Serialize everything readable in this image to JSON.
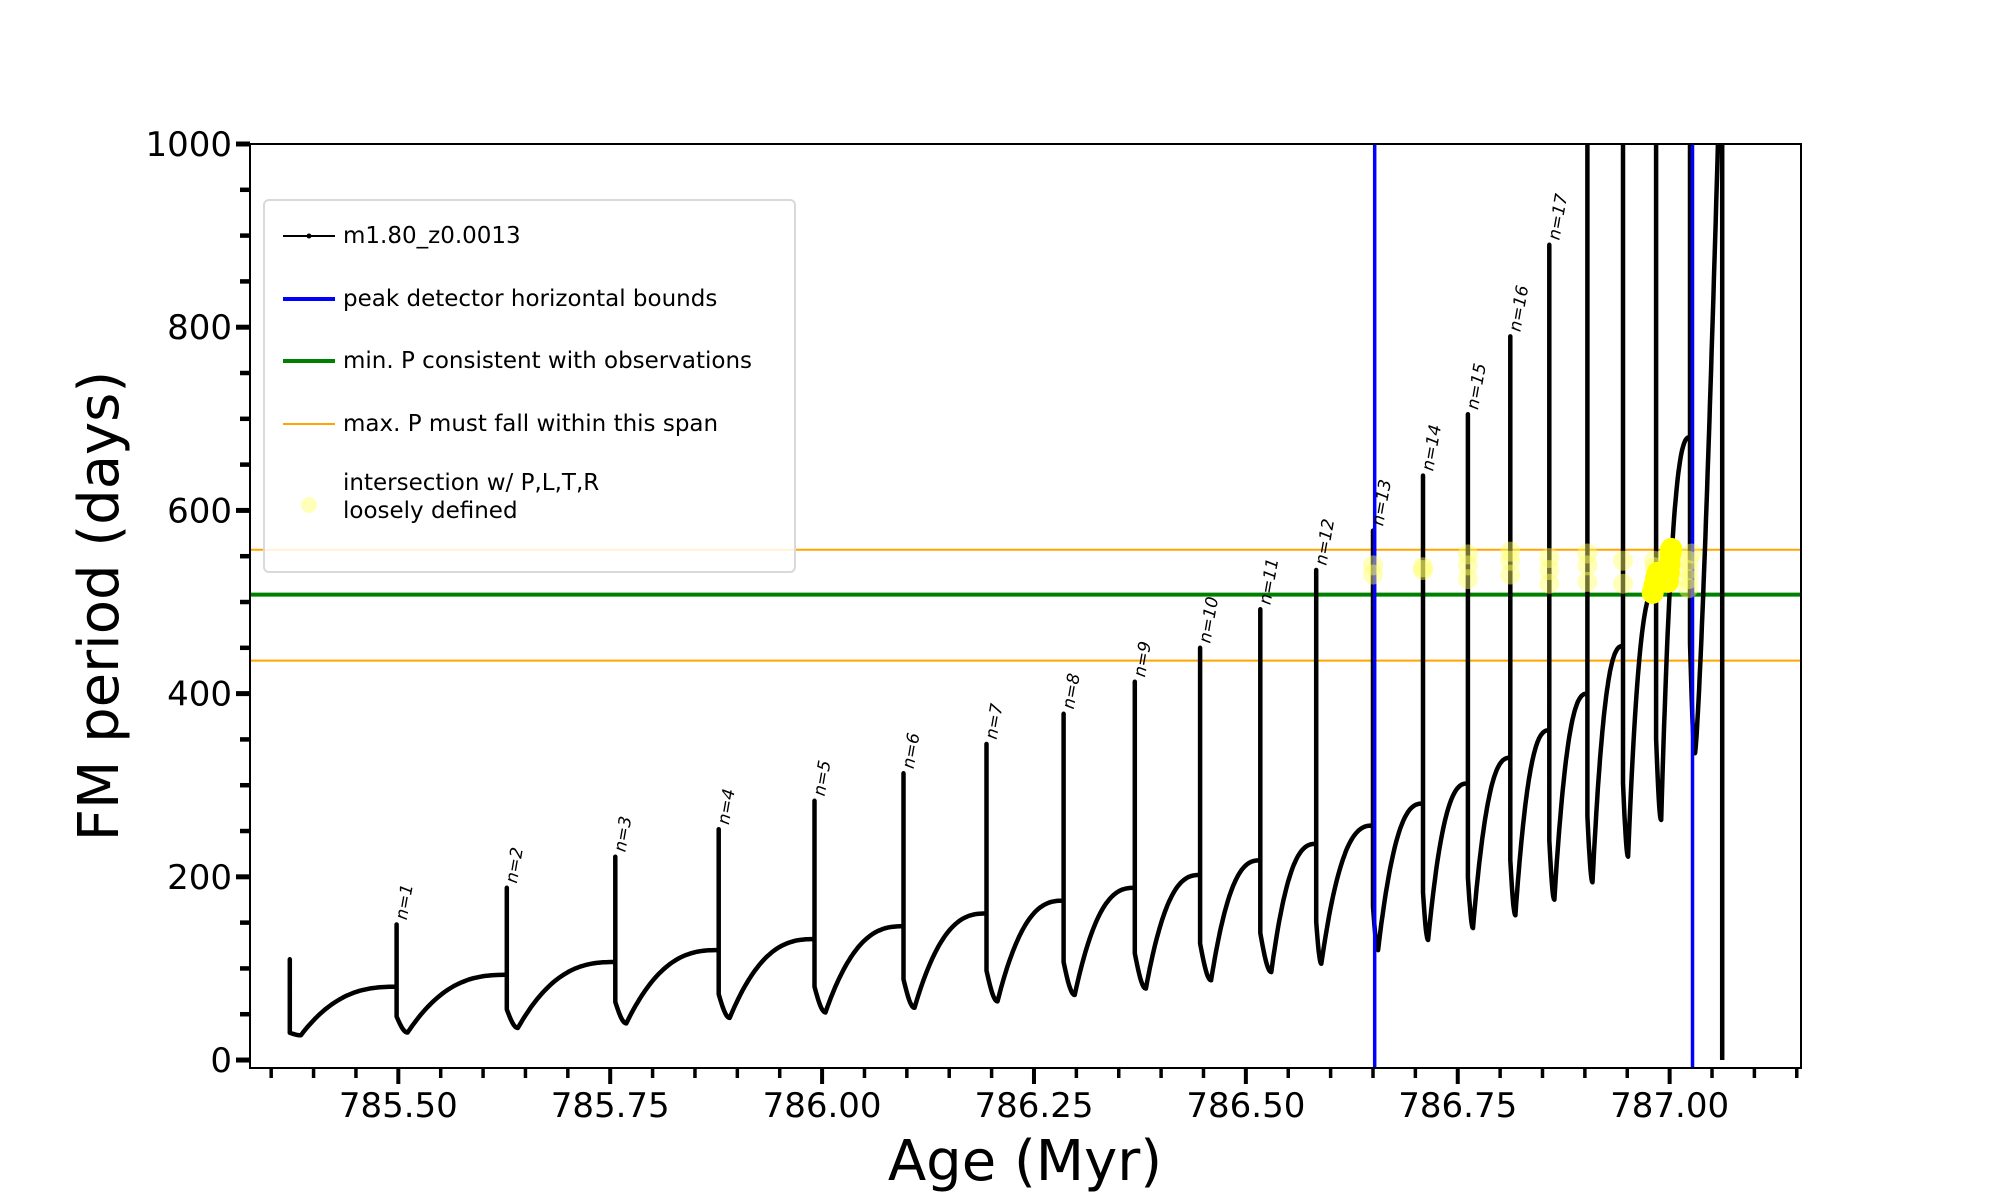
{
  "chart_data": {
    "type": "line",
    "xlabel": "Age (Myr)",
    "ylabel": "FM period (days)",
    "xlim": [
      785.325,
      787.155
    ],
    "ylim": [
      -8.7,
      1000
    ],
    "x_ticks": [
      785.5,
      785.75,
      786.0,
      786.25,
      786.5,
      786.75,
      787.0
    ],
    "x_tick_labels": [
      "785.50",
      "785.75",
      "786.00",
      "786.25",
      "786.50",
      "786.75",
      "787.00"
    ],
    "x_minor_step": 0.05,
    "y_ticks": [
      0,
      200,
      400,
      600,
      800,
      1000
    ],
    "y_tick_labels": [
      "0",
      "200",
      "400",
      "600",
      "800",
      "1000"
    ],
    "y_minor_step": 50,
    "grid": false,
    "legend_placement": "upper-left",
    "legend": [
      {
        "label": "m1.80_z0.0013",
        "color": "#000000",
        "kind": "line-marker"
      },
      {
        "label": "peak detector horizontal bounds",
        "color": "#0000ff",
        "kind": "line"
      },
      {
        "label": "min. P consistent with observations",
        "color": "#008000",
        "kind": "line"
      },
      {
        "label": "max. P must fall within this span",
        "color": "#ffa500",
        "kind": "thin-line"
      },
      {
        "label": "intersection w/ P,L,T,R",
        "label2": "loosely defined",
        "color": "#ffff66",
        "kind": "point"
      }
    ],
    "model_series": {
      "name": "m1.80_z0.0013",
      "color": "#000000",
      "pulses": [
        {
          "label": "",
          "age": 785.372,
          "pre": 35,
          "peak": 110,
          "dip": 27
        },
        {
          "label": "n=1",
          "age": 785.498,
          "pre": 80,
          "peak": 148,
          "dip": 30
        },
        {
          "label": "n=2",
          "age": 785.628,
          "pre": 93,
          "peak": 188,
          "dip": 35
        },
        {
          "label": "n=3",
          "age": 785.756,
          "pre": 107,
          "peak": 222,
          "dip": 40
        },
        {
          "label": "n=4",
          "age": 785.878,
          "pre": 120,
          "peak": 252,
          "dip": 46
        },
        {
          "label": "n=5",
          "age": 785.991,
          "pre": 132,
          "peak": 283,
          "dip": 52
        },
        {
          "label": "n=6",
          "age": 786.096,
          "pre": 146,
          "peak": 313,
          "dip": 57
        },
        {
          "label": "n=7",
          "age": 786.194,
          "pre": 160,
          "peak": 345,
          "dip": 64
        },
        {
          "label": "n=8",
          "age": 786.285,
          "pre": 174,
          "peak": 378,
          "dip": 71
        },
        {
          "label": "n=9",
          "age": 786.369,
          "pre": 188,
          "peak": 413,
          "dip": 78
        },
        {
          "label": "n=10",
          "age": 786.446,
          "pre": 202,
          "peak": 450,
          "dip": 87
        },
        {
          "label": "n=11",
          "age": 786.517,
          "pre": 218,
          "peak": 492,
          "dip": 96
        },
        {
          "label": "n=12",
          "age": 786.583,
          "pre": 236,
          "peak": 535,
          "dip": 105
        },
        {
          "label": "n=13",
          "age": 786.65,
          "pre": 256,
          "peak": 578,
          "dip": 120
        },
        {
          "label": "n=14",
          "age": 786.709,
          "pre": 280,
          "peak": 638,
          "dip": 131
        },
        {
          "label": "n=15",
          "age": 786.762,
          "pre": 302,
          "peak": 705,
          "dip": 144
        },
        {
          "label": "n=16",
          "age": 786.812,
          "pre": 330,
          "peak": 790,
          "dip": 158
        },
        {
          "label": "n=17",
          "age": 786.858,
          "pre": 360,
          "peak": 890,
          "dip": 175
        },
        {
          "label": "",
          "age": 786.903,
          "pre": 400,
          "peak": 1000,
          "dip": 194
        },
        {
          "label": "",
          "age": 786.945,
          "pre": 452,
          "peak": 1000,
          "dip": 222
        },
        {
          "label": "",
          "age": 786.984,
          "pre": 515,
          "peak": 1000,
          "dip": 262
        },
        {
          "label": "",
          "age": 787.024,
          "pre": 680,
          "peak": 1000,
          "dip": 335
        }
      ],
      "final_rise": {
        "age": 787.057,
        "value": 1000
      },
      "final_drop": {
        "age": 787.062,
        "value": 0
      }
    },
    "vertical_lines": [
      {
        "name": "peak detector horizontal bounds",
        "x": 786.652,
        "color": "#0000ff"
      },
      {
        "name": "peak detector horizontal bounds",
        "x": 787.027,
        "color": "#0000ff"
      }
    ],
    "horizontal_lines": [
      {
        "name": "max. P upper",
        "y": 557,
        "color": "#ffa500"
      },
      {
        "name": "min. P consistent with observations",
        "y": 508,
        "color": "#008000"
      },
      {
        "name": "max. P lower",
        "y": 436,
        "color": "#ffa500"
      }
    ],
    "intersection_points": [
      {
        "x": 786.65,
        "y": 530
      },
      {
        "x": 786.65,
        "y": 540
      },
      {
        "x": 786.709,
        "y": 535
      },
      {
        "x": 786.709,
        "y": 538
      },
      {
        "x": 786.762,
        "y": 525
      },
      {
        "x": 786.762,
        "y": 540
      },
      {
        "x": 786.762,
        "y": 552
      },
      {
        "x": 786.812,
        "y": 530
      },
      {
        "x": 786.812,
        "y": 545
      },
      {
        "x": 786.812,
        "y": 555
      },
      {
        "x": 786.858,
        "y": 520
      },
      {
        "x": 786.858,
        "y": 535
      },
      {
        "x": 786.858,
        "y": 548
      },
      {
        "x": 786.903,
        "y": 522
      },
      {
        "x": 786.903,
        "y": 540
      },
      {
        "x": 786.903,
        "y": 553
      },
      {
        "x": 786.945,
        "y": 520
      },
      {
        "x": 786.945,
        "y": 545
      },
      {
        "x": 786.982,
        "y": 545
      },
      {
        "x": 786.982,
        "y": 538
      },
      {
        "x": 787.022,
        "y": 515
      },
      {
        "x": 787.022,
        "y": 525
      },
      {
        "x": 787.022,
        "y": 535
      },
      {
        "x": 787.022,
        "y": 545
      },
      {
        "x": 787.026,
        "y": 553
      }
    ],
    "intersection_dense": [
      {
        "x": 786.98,
        "y": 510
      },
      {
        "x": 786.982,
        "y": 518
      },
      {
        "x": 786.984,
        "y": 526
      },
      {
        "x": 786.986,
        "y": 532
      },
      {
        "x": 786.998,
        "y": 522
      },
      {
        "x": 786.999,
        "y": 532
      },
      {
        "x": 787.0,
        "y": 542
      },
      {
        "x": 787.001,
        "y": 552
      },
      {
        "x": 787.002,
        "y": 558
      }
    ]
  }
}
